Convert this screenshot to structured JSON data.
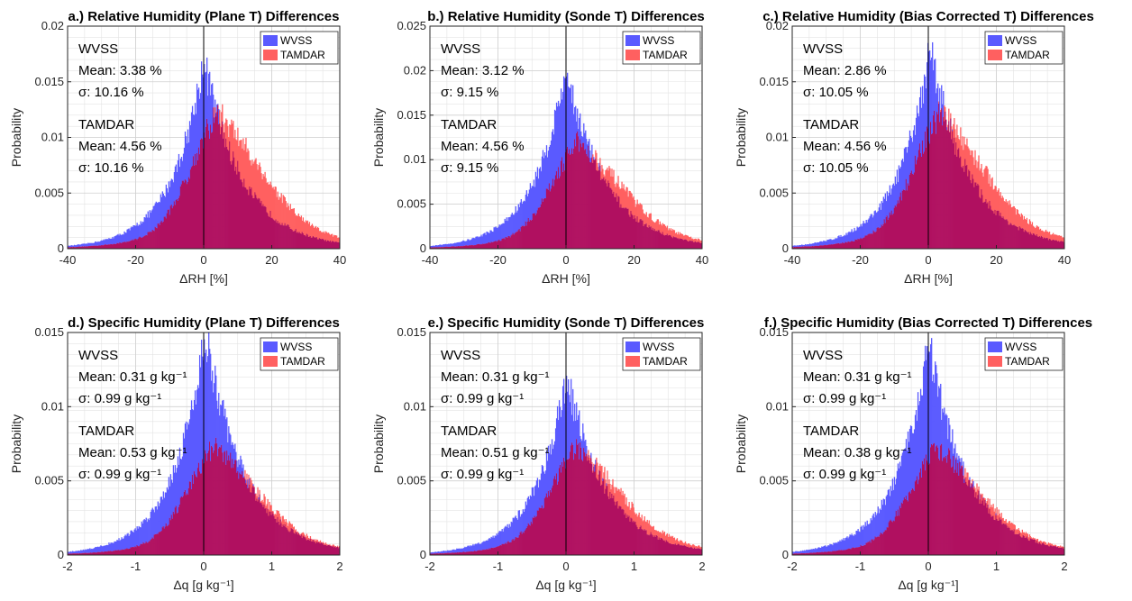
{
  "legend": {
    "wvss": "WVSS",
    "tamdar": "TAMDAR"
  },
  "colors": {
    "wvss": "#5a5aff",
    "tamdar": "#ff6060",
    "overlap": "#b01060",
    "axis": "#262626",
    "grid": "#e3e3e3"
  },
  "chart_data": [
    {
      "type": "bar",
      "title": "a.) Relative Humidity (Plane T) Differences",
      "xlabel": "ΔRH [%]",
      "ylabel": "Probability",
      "xlim": [
        -40,
        40
      ],
      "ylim": [
        0,
        0.02
      ],
      "xticks": [
        "-40",
        "-20",
        "0",
        "20",
        "40"
      ],
      "yticks": [
        "0",
        "0.005",
        "0.01",
        "0.015",
        "0.02"
      ],
      "grid": true,
      "legend_position": "top-right",
      "series": [
        {
          "name": "WVSS",
          "distribution": "laplace-like",
          "peak_x": 0,
          "peak_y": 0.017,
          "stats": {
            "label": "WVSS",
            "mean": "Mean: 3.38 %",
            "sigma": "σ: 10.16 %"
          }
        },
        {
          "name": "TAMDAR",
          "distribution": "skewed",
          "peak_x": 4,
          "peak_y": 0.0122,
          "stats": {
            "label": "TAMDAR",
            "mean": "Mean: 4.56 %",
            "sigma": "σ: 10.16 %"
          }
        }
      ]
    },
    {
      "type": "bar",
      "title": "b.) Relative Humidity (Sonde T) Differences",
      "xlabel": "ΔRH [%]",
      "ylabel": "Probability",
      "xlim": [
        -40,
        40
      ],
      "ylim": [
        0,
        0.025
      ],
      "xticks": [
        "-40",
        "-20",
        "0",
        "20",
        "40"
      ],
      "yticks": [
        "0",
        "0.005",
        "0.01",
        "0.015",
        "0.02",
        "0.025"
      ],
      "grid": true,
      "legend_position": "top-right",
      "series": [
        {
          "name": "WVSS",
          "distribution": "laplace-like",
          "peak_x": 0,
          "peak_y": 0.0205,
          "stats": {
            "label": "WVSS",
            "mean": "Mean: 3.12 %",
            "sigma": "σ: 9.15 %"
          }
        },
        {
          "name": "TAMDAR",
          "distribution": "skewed",
          "peak_x": 3.5,
          "peak_y": 0.012,
          "stats": {
            "label": "TAMDAR",
            "mean": "Mean: 4.56 %",
            "sigma": "σ: 9.15 %"
          }
        }
      ]
    },
    {
      "type": "bar",
      "title": "c.) Relative Humidity (Bias Corrected T) Differences",
      "xlabel": "ΔRH [%]",
      "ylabel": "Probability",
      "xlim": [
        -40,
        40
      ],
      "ylim": [
        0,
        0.02
      ],
      "xticks": [
        "-40",
        "-20",
        "0",
        "20",
        "40"
      ],
      "yticks": [
        "0",
        "0.005",
        "0.01",
        "0.015",
        "0.02"
      ],
      "grid": true,
      "legend_position": "top-right",
      "series": [
        {
          "name": "WVSS",
          "distribution": "laplace-like",
          "peak_x": 0.5,
          "peak_y": 0.018,
          "stats": {
            "label": "WVSS",
            "mean": "Mean: 2.86 %",
            "sigma": "σ: 10.05 %"
          }
        },
        {
          "name": "TAMDAR",
          "distribution": "skewed",
          "peak_x": 3.5,
          "peak_y": 0.0122,
          "stats": {
            "label": "TAMDAR",
            "mean": "Mean: 4.56 %",
            "sigma": "σ: 10.05 %"
          }
        }
      ]
    },
    {
      "type": "bar",
      "title": "d.) Specific Humidity (Plane T) Differences",
      "xlabel": "Δq [g kg⁻¹]",
      "ylabel": "Probability",
      "xlim": [
        -2,
        2
      ],
      "ylim": [
        0,
        0.015
      ],
      "xticks": [
        "-2",
        "-1",
        "0",
        "1",
        "2"
      ],
      "yticks": [
        "0",
        "0.005",
        "0.01",
        "0.015"
      ],
      "grid": true,
      "legend_position": "top-right",
      "series": [
        {
          "name": "WVSS",
          "distribution": "laplace-like",
          "peak_x": 0.02,
          "peak_y": 0.015,
          "stats": {
            "label": "WVSS",
            "mean": "Mean: 0.31 g kg⁻¹",
            "sigma": "σ: 0.99 g kg⁻¹"
          }
        },
        {
          "name": "TAMDAR",
          "distribution": "skewed",
          "peak_x": 0.15,
          "peak_y": 0.0073,
          "stats": {
            "label": "TAMDAR",
            "mean": "Mean: 0.53 g kg⁻¹",
            "sigma": "σ: 0.99 g kg⁻¹"
          }
        }
      ]
    },
    {
      "type": "bar",
      "title": "e.) Specific Humidity (Sonde T) Differences",
      "xlabel": "Δq [g kg⁻¹]",
      "ylabel": "Probability",
      "xlim": [
        -2,
        2
      ],
      "ylim": [
        0,
        0.015
      ],
      "xticks": [
        "-2",
        "-1",
        "0",
        "1",
        "2"
      ],
      "yticks": [
        "0",
        "0.005",
        "0.01",
        "0.015"
      ],
      "grid": true,
      "legend_position": "top-right",
      "series": [
        {
          "name": "WVSS",
          "distribution": "laplace-like",
          "peak_x": 0.01,
          "peak_y": 0.0121,
          "stats": {
            "label": "WVSS",
            "mean": "Mean: 0.31 g kg⁻¹",
            "sigma": "σ: 0.99 g kg⁻¹"
          }
        },
        {
          "name": "TAMDAR",
          "distribution": "skewed",
          "peak_x": 0.15,
          "peak_y": 0.0072,
          "stats": {
            "label": "TAMDAR",
            "mean": "Mean: 0.51 g kg⁻¹",
            "sigma": "σ: 0.99 g kg⁻¹"
          }
        }
      ]
    },
    {
      "type": "bar",
      "title": "f.) Specific Humidity (Bias Corrected T) Differences",
      "xlabel": "Δq [g kg⁻¹]",
      "ylabel": "Probability",
      "xlim": [
        -2,
        2
      ],
      "ylim": [
        0,
        0.015
      ],
      "xticks": [
        "-2",
        "-1",
        "0",
        "1",
        "2"
      ],
      "yticks": [
        "0",
        "0.005",
        "0.01",
        "0.015"
      ],
      "grid": true,
      "legend_position": "top-right",
      "series": [
        {
          "name": "WVSS",
          "distribution": "laplace-like",
          "peak_x": 0.0,
          "peak_y": 0.0143,
          "stats": {
            "label": "WVSS",
            "mean": "Mean: 0.31 g kg⁻¹",
            "sigma": "σ: 0.99 g kg⁻¹"
          }
        },
        {
          "name": "TAMDAR",
          "distribution": "skewed",
          "peak_x": 0.12,
          "peak_y": 0.0072,
          "stats": {
            "label": "TAMDAR",
            "mean": "Mean: 0.38 g kg⁻¹",
            "sigma": "σ: 0.99 g kg⁻¹"
          }
        }
      ]
    }
  ]
}
